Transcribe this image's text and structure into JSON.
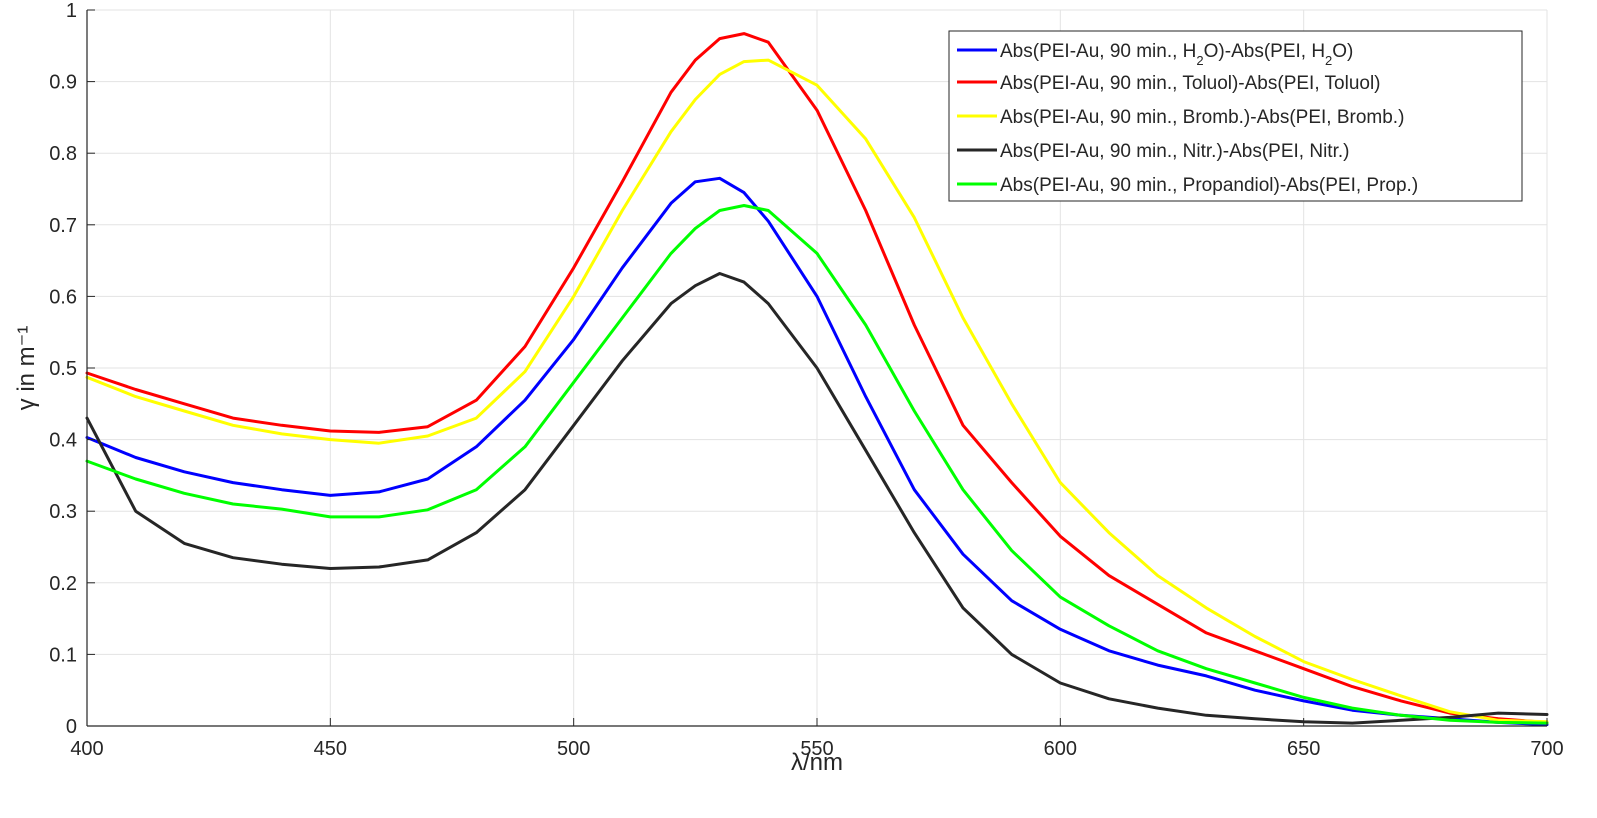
{
  "chart_data": {
    "type": "line",
    "xlabel": "λ/nm",
    "ylabel": "γ in m⁻¹",
    "xlim": [
      400,
      700
    ],
    "ylim": [
      0,
      1
    ],
    "x_ticks": [
      "400",
      "450",
      "500",
      "550",
      "600",
      "650",
      "700"
    ],
    "y_ticks": [
      "0",
      "0.1",
      "0.2",
      "0.3",
      "0.4",
      "0.5",
      "0.6",
      "0.7",
      "0.8",
      "0.9",
      "1"
    ],
    "grid": true,
    "legend_position": "top-right",
    "x": [
      400,
      410,
      420,
      430,
      440,
      450,
      460,
      470,
      480,
      490,
      500,
      510,
      520,
      525,
      530,
      535,
      540,
      550,
      560,
      570,
      580,
      590,
      600,
      610,
      620,
      630,
      640,
      650,
      660,
      670,
      680,
      690,
      700
    ],
    "series": [
      {
        "name": "Abs(PEI-Au, 90 min., H2O)-Abs(PEI, H2O)",
        "legend_parts": [
          "Abs(PEI-Au, 90 min., H",
          "2",
          "O)-Abs(PEI, H",
          "2",
          "O)"
        ],
        "color": "#0000ff",
        "values": [
          0.403,
          0.375,
          0.355,
          0.34,
          0.33,
          0.322,
          0.327,
          0.345,
          0.39,
          0.455,
          0.54,
          0.64,
          0.73,
          0.76,
          0.765,
          0.745,
          0.705,
          0.6,
          0.46,
          0.33,
          0.24,
          0.175,
          0.135,
          0.105,
          0.085,
          0.07,
          0.05,
          0.035,
          0.022,
          0.015,
          0.01,
          0.005,
          0.002
        ]
      },
      {
        "name": "Abs(PEI-Au, 90 min., Toluol)-Abs(PEI, Toluol)",
        "legend_parts": [
          "Abs(PEI-Au, 90 min., Toluol)-Abs(PEI, Toluol)"
        ],
        "color": "#ff0000",
        "values": [
          0.493,
          0.47,
          0.45,
          0.43,
          0.42,
          0.412,
          0.41,
          0.418,
          0.455,
          0.53,
          0.64,
          0.76,
          0.885,
          0.93,
          0.96,
          0.967,
          0.955,
          0.86,
          0.72,
          0.56,
          0.42,
          0.34,
          0.265,
          0.21,
          0.17,
          0.13,
          0.105,
          0.08,
          0.055,
          0.035,
          0.018,
          0.01,
          0.005
        ]
      },
      {
        "name": "Abs(PEI-Au, 90 min., Bromb.)-Abs(PEI, Bromb.)",
        "legend_parts": [
          "Abs(PEI-Au, 90 min., Bromb.)-Abs(PEI, Bromb.)"
        ],
        "color": "#ffff00",
        "values": [
          0.487,
          0.46,
          0.44,
          0.42,
          0.408,
          0.4,
          0.395,
          0.405,
          0.43,
          0.495,
          0.6,
          0.72,
          0.83,
          0.875,
          0.91,
          0.928,
          0.93,
          0.895,
          0.82,
          0.71,
          0.57,
          0.45,
          0.34,
          0.27,
          0.21,
          0.165,
          0.125,
          0.09,
          0.065,
          0.042,
          0.02,
          0.008,
          0.006
        ]
      },
      {
        "name": "Abs(PEI-Au, 90 min., Nitr.)-Abs(PEI, Nitr.)",
        "legend_parts": [
          "Abs(PEI-Au, 90 min., Nitr.)-Abs(PEI, Nitr.)"
        ],
        "color": "#262626",
        "values": [
          0.43,
          0.3,
          0.255,
          0.235,
          0.226,
          0.22,
          0.222,
          0.232,
          0.27,
          0.33,
          0.42,
          0.51,
          0.59,
          0.615,
          0.632,
          0.62,
          0.59,
          0.5,
          0.385,
          0.27,
          0.165,
          0.1,
          0.06,
          0.038,
          0.025,
          0.015,
          0.01,
          0.006,
          0.004,
          0.008,
          0.012,
          0.018,
          0.016
        ]
      },
      {
        "name": "Abs(PEI-Au, 90 min., Propandiol)-Abs(PEI, Prop.)",
        "legend_parts": [
          "Abs(PEI-Au, 90 min., Propandiol)-Abs(PEI, Prop.)"
        ],
        "color": "#00ff00",
        "values": [
          0.37,
          0.345,
          0.325,
          0.31,
          0.303,
          0.292,
          0.292,
          0.302,
          0.33,
          0.39,
          0.48,
          0.57,
          0.66,
          0.695,
          0.72,
          0.727,
          0.72,
          0.66,
          0.56,
          0.44,
          0.33,
          0.245,
          0.18,
          0.14,
          0.105,
          0.08,
          0.06,
          0.04,
          0.025,
          0.015,
          0.008,
          0.005,
          0.004
        ]
      }
    ]
  }
}
